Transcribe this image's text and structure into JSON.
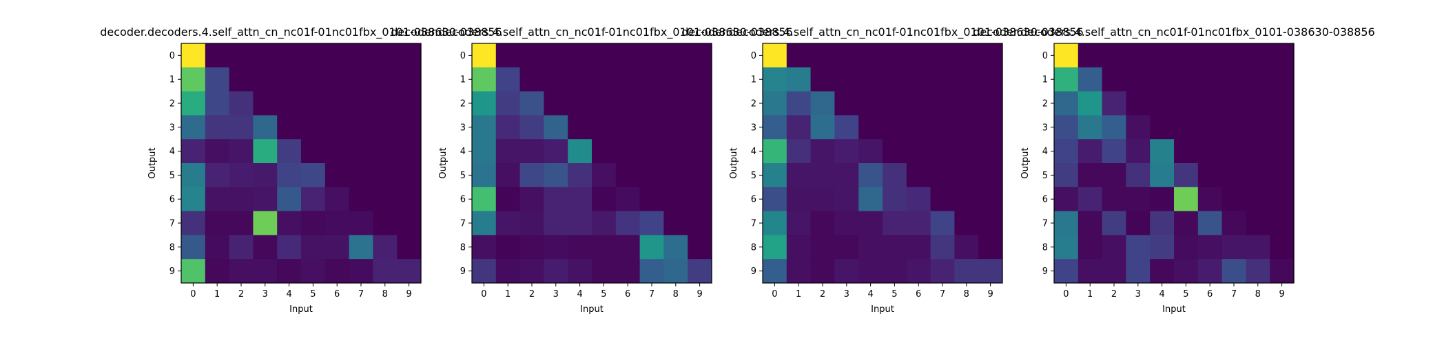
{
  "chart_data": [
    {
      "type": "heatmap",
      "title": "decoder.decoders.4.self_attn_cn_nc01f-01nc01fbx_0101-038630-038856",
      "xlabel": "Input",
      "ylabel": "Output",
      "x_ticks": [
        "0",
        "1",
        "2",
        "3",
        "4",
        "5",
        "6",
        "7",
        "8",
        "9"
      ],
      "y_ticks": [
        "0",
        "1",
        "2",
        "3",
        "4",
        "5",
        "6",
        "7",
        "8",
        "9"
      ],
      "colormap": "viridis",
      "vmin": 0,
      "vmax": 1,
      "values": [
        [
          1.0,
          0,
          0,
          0,
          0,
          0,
          0,
          0,
          0,
          0
        ],
        [
          0.75,
          0.22,
          0,
          0,
          0,
          0,
          0,
          0,
          0,
          0
        ],
        [
          0.62,
          0.22,
          0.14,
          0,
          0,
          0,
          0,
          0,
          0,
          0
        ],
        [
          0.35,
          0.16,
          0.16,
          0.34,
          0,
          0,
          0,
          0,
          0,
          0
        ],
        [
          0.1,
          0.04,
          0.06,
          0.62,
          0.18,
          0,
          0,
          0,
          0,
          0
        ],
        [
          0.42,
          0.1,
          0.08,
          0.07,
          0.2,
          0.22,
          0,
          0,
          0,
          0
        ],
        [
          0.45,
          0.05,
          0.05,
          0.06,
          0.28,
          0.1,
          0.04,
          0,
          0,
          0
        ],
        [
          0.14,
          0.02,
          0.02,
          0.78,
          0.04,
          0.02,
          0.03,
          0.03,
          0,
          0
        ],
        [
          0.28,
          0.03,
          0.1,
          0.02,
          0.12,
          0.05,
          0.05,
          0.38,
          0.09,
          0
        ],
        [
          0.72,
          0.02,
          0.04,
          0.04,
          0.02,
          0.04,
          0.02,
          0.03,
          0.1,
          0.1
        ]
      ]
    },
    {
      "type": "heatmap",
      "title": "decoder.decoders.4.self_attn_cn_nc01f-01nc01fbx_0101-038630-038856",
      "xlabel": "Input",
      "ylabel": "Output",
      "x_ticks": [
        "0",
        "1",
        "2",
        "3",
        "4",
        "5",
        "6",
        "7",
        "8",
        "9"
      ],
      "y_ticks": [
        "0",
        "1",
        "2",
        "3",
        "4",
        "5",
        "6",
        "7",
        "8",
        "9"
      ],
      "colormap": "viridis",
      "vmin": 0,
      "vmax": 1,
      "values": [
        [
          1.0,
          0,
          0,
          0,
          0,
          0,
          0,
          0,
          0,
          0
        ],
        [
          0.75,
          0.2,
          0,
          0,
          0,
          0,
          0,
          0,
          0,
          0
        ],
        [
          0.52,
          0.18,
          0.25,
          0,
          0,
          0,
          0,
          0,
          0,
          0
        ],
        [
          0.4,
          0.12,
          0.18,
          0.32,
          0,
          0,
          0,
          0,
          0,
          0
        ],
        [
          0.4,
          0.06,
          0.06,
          0.08,
          0.48,
          0,
          0,
          0,
          0,
          0
        ],
        [
          0.38,
          0.04,
          0.22,
          0.26,
          0.14,
          0.04,
          0,
          0,
          0,
          0
        ],
        [
          0.7,
          0.01,
          0.04,
          0.1,
          0.1,
          0.01,
          0.03,
          0,
          0,
          0
        ],
        [
          0.42,
          0.06,
          0.05,
          0.1,
          0.1,
          0.07,
          0.15,
          0.2,
          0,
          0
        ],
        [
          0.04,
          0.01,
          0.02,
          0.03,
          0.02,
          0.02,
          0.02,
          0.52,
          0.36,
          0
        ],
        [
          0.16,
          0.03,
          0.04,
          0.08,
          0.05,
          0.02,
          0.02,
          0.3,
          0.34,
          0.18
        ]
      ]
    },
    {
      "type": "heatmap",
      "title": "decoder.decoders.4.self_attn_cn_nc01f-01nc01fbx_0101-038630-038856",
      "xlabel": "Input",
      "ylabel": "Output",
      "x_ticks": [
        "0",
        "1",
        "2",
        "3",
        "4",
        "5",
        "6",
        "7",
        "8",
        "9"
      ],
      "y_ticks": [
        "0",
        "1",
        "2",
        "3",
        "4",
        "5",
        "6",
        "7",
        "8",
        "9"
      ],
      "colormap": "viridis",
      "vmin": 0,
      "vmax": 1,
      "values": [
        [
          1.0,
          0,
          0,
          0,
          0,
          0,
          0,
          0,
          0,
          0
        ],
        [
          0.45,
          0.42,
          0,
          0,
          0,
          0,
          0,
          0,
          0,
          0
        ],
        [
          0.4,
          0.22,
          0.34,
          0,
          0,
          0,
          0,
          0,
          0,
          0
        ],
        [
          0.3,
          0.1,
          0.36,
          0.2,
          0,
          0,
          0,
          0,
          0,
          0
        ],
        [
          0.66,
          0.14,
          0.06,
          0.08,
          0.06,
          0,
          0,
          0,
          0,
          0
        ],
        [
          0.44,
          0.06,
          0.06,
          0.06,
          0.26,
          0.14,
          0,
          0,
          0,
          0
        ],
        [
          0.24,
          0.05,
          0.05,
          0.06,
          0.34,
          0.14,
          0.12,
          0,
          0,
          0
        ],
        [
          0.46,
          0.06,
          0.02,
          0.04,
          0.04,
          0.1,
          0.1,
          0.2,
          0,
          0
        ],
        [
          0.58,
          0.04,
          0.02,
          0.02,
          0.04,
          0.04,
          0.04,
          0.16,
          0.04,
          0
        ],
        [
          0.3,
          0.04,
          0.02,
          0.06,
          0.04,
          0.04,
          0.06,
          0.1,
          0.16,
          0.16
        ]
      ]
    },
    {
      "type": "heatmap",
      "title": "decoder.decoders.4.self_attn_cn_nc01f-01nc01fbx_0101-038630-038856",
      "xlabel": "Input",
      "ylabel": "Output",
      "x_ticks": [
        "0",
        "1",
        "2",
        "3",
        "4",
        "5",
        "6",
        "7",
        "8",
        "9"
      ],
      "y_ticks": [
        "0",
        "1",
        "2",
        "3",
        "4",
        "5",
        "6",
        "7",
        "8",
        "9"
      ],
      "colormap": "viridis",
      "vmin": 0,
      "vmax": 1,
      "values": [
        [
          1.0,
          0,
          0,
          0,
          0,
          0,
          0,
          0,
          0,
          0
        ],
        [
          0.64,
          0.3,
          0,
          0,
          0,
          0,
          0,
          0,
          0,
          0
        ],
        [
          0.34,
          0.52,
          0.1,
          0,
          0,
          0,
          0,
          0,
          0,
          0
        ],
        [
          0.24,
          0.4,
          0.3,
          0.04,
          0,
          0,
          0,
          0,
          0,
          0
        ],
        [
          0.2,
          0.08,
          0.2,
          0.06,
          0.44,
          0,
          0,
          0,
          0,
          0
        ],
        [
          0.18,
          0.02,
          0.02,
          0.14,
          0.42,
          0.16,
          0,
          0,
          0,
          0
        ],
        [
          0.04,
          0.1,
          0.02,
          0.02,
          0.01,
          0.78,
          0.02,
          0,
          0,
          0
        ],
        [
          0.4,
          0.02,
          0.18,
          0.01,
          0.16,
          0.02,
          0.26,
          0.02,
          0,
          0
        ],
        [
          0.42,
          0.02,
          0.04,
          0.2,
          0.18,
          0.03,
          0.04,
          0.06,
          0.06,
          0
        ],
        [
          0.2,
          0.04,
          0.04,
          0.2,
          0.02,
          0.04,
          0.08,
          0.24,
          0.14,
          0.02
        ]
      ]
    }
  ]
}
